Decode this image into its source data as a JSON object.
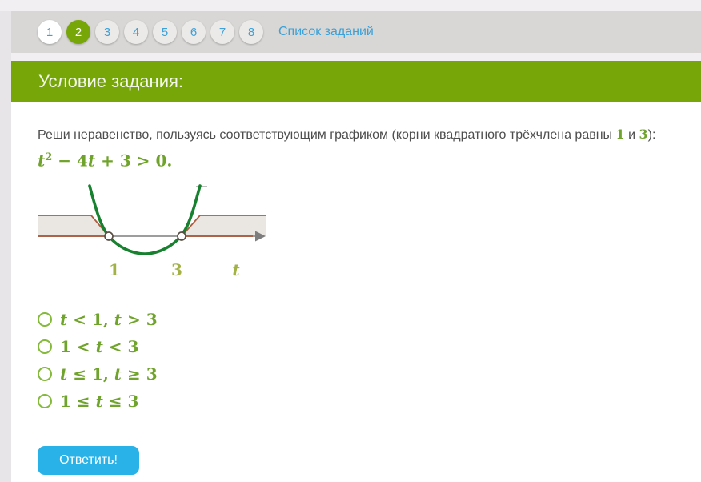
{
  "pagination": {
    "items": [
      {
        "label": "1",
        "state": "visited"
      },
      {
        "label": "2",
        "state": "active"
      },
      {
        "label": "3",
        "state": "default"
      },
      {
        "label": "4",
        "state": "default"
      },
      {
        "label": "5",
        "state": "default"
      },
      {
        "label": "6",
        "state": "default"
      },
      {
        "label": "7",
        "state": "default"
      },
      {
        "label": "8",
        "state": "default"
      }
    ],
    "tasks_list_link": "Список заданий"
  },
  "header": {
    "title": "Условие задания:"
  },
  "task": {
    "line_before_roots": "Реши неравенство, пользуясь соответствующим графиком (корни квадратного трёхчлена равны ",
    "root1": "1",
    "between_roots": " и ",
    "root2": "3",
    "line_after_roots": "):",
    "formula": {
      "variable": "t",
      "exponent": "2",
      "tail": " − 4t + 3 > 0."
    }
  },
  "graph": {
    "type": "quadratic-inequality-number-line",
    "roots": [
      1,
      3
    ],
    "tick_labels": [
      "1",
      "3"
    ],
    "axis_label": "t",
    "shaded_solution_intervals": "t < 1 and t > 3",
    "root_markers": "open circles",
    "colors": {
      "parabola": "#17812f",
      "band_fill": "#eae6e2",
      "band_edge": "#ae5b3e",
      "axis": "#9d9d9d",
      "arrow": "#7d7d7d",
      "labels": "#a2b244",
      "marker_stroke": "#5a4f45"
    }
  },
  "options": [
    {
      "label": "t < 1, t > 3"
    },
    {
      "label": "1 < t < 3"
    },
    {
      "label": "t ≤ 1, t ≥ 3"
    },
    {
      "label": "1 ≤ t ≤ 3"
    }
  ],
  "answer_button": {
    "label": "Ответить!"
  },
  "colors": {
    "accent_green": "#76a608",
    "link_blue": "#3ba1d8",
    "button_blue": "#28b2e7",
    "math_green": "#70a32c",
    "page_bg": "#f1eff2",
    "bar_bg": "#d8d7d5"
  }
}
